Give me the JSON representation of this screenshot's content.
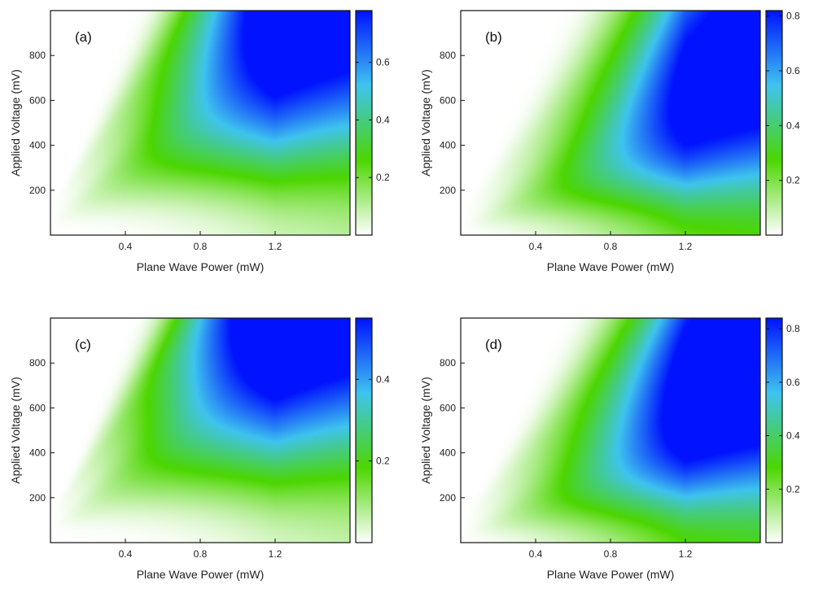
{
  "chart_data": [
    {
      "type": "heatmap",
      "panel_label": "(a)",
      "xlabel": "Plane Wave Power (mW)",
      "ylabel": "Applied Voltage (mV)",
      "xlim": [
        0,
        1.6
      ],
      "ylim": [
        0,
        1000
      ],
      "xticks": [
        0.4,
        0.8,
        1.2
      ],
      "xtick_labels": [
        "0.4",
        "0.8",
        "1.2"
      ],
      "yticks": [
        200,
        400,
        600,
        800
      ],
      "ytick_labels": [
        "200",
        "400",
        "600",
        "800"
      ],
      "colorbar": {
        "min": 0,
        "max": 0.78,
        "ticks": [
          0.2,
          0.4,
          0.6
        ],
        "tick_labels": [
          "0.2",
          "0.4",
          "0.6"
        ]
      },
      "pattern": {
        "gain": 0.78,
        "ridges": [
          0.95,
          1.9
        ],
        "floor": 0.6,
        "amp": [
          1.0,
          0.72
        ],
        "tilt": 0.3
      },
      "colormap": [
        "#ffffff",
        "#4cd600",
        "#3ec3ef",
        "#0012ff"
      ],
      "grid": false
    },
    {
      "type": "heatmap",
      "panel_label": "(b)",
      "xlabel": "Plane Wave Power (mW)",
      "ylabel": "Applied Voltage (mV)",
      "xlim": [
        0,
        1.6
      ],
      "ylim": [
        0,
        1000
      ],
      "xticks": [
        0.4,
        0.8,
        1.2
      ],
      "xtick_labels": [
        "0.4",
        "0.8",
        "1.2"
      ],
      "yticks": [
        200,
        400,
        600,
        800
      ],
      "ytick_labels": [
        "200",
        "400",
        "600",
        "800"
      ],
      "colorbar": {
        "min": 0,
        "max": 0.82,
        "ticks": [
          0.2,
          0.4,
          0.6,
          0.8
        ],
        "tick_labels": [
          "0.2",
          "0.4",
          "0.6",
          "0.8"
        ]
      },
      "pattern": {
        "gain": 0.82,
        "ridges": [
          0.55,
          1.45
        ],
        "floor": 0.55,
        "amp": [
          1.0,
          0.45
        ],
        "tilt": 0.2
      },
      "colormap": [
        "#ffffff",
        "#4cd600",
        "#3ec3ef",
        "#0012ff"
      ],
      "grid": false
    },
    {
      "type": "heatmap",
      "panel_label": "(c)",
      "xlabel": "Plane Wave Power (mW)",
      "ylabel": "Applied Voltage (mV)",
      "xlim": [
        0,
        1.6
      ],
      "ylim": [
        0,
        1000
      ],
      "xticks": [
        0.4,
        0.8,
        1.2
      ],
      "xtick_labels": [
        "0.4",
        "0.8",
        "1.2"
      ],
      "yticks": [
        200,
        400,
        600,
        800
      ],
      "ytick_labels": [
        "200",
        "400",
        "600",
        "800"
      ],
      "colorbar": {
        "min": 0,
        "max": 0.55,
        "ticks": [
          0.2,
          0.4
        ],
        "tick_labels": [
          "0.2",
          "0.4"
        ]
      },
      "pattern": {
        "gain": 0.55,
        "ridges": [
          1.0,
          1.95
        ],
        "floor": 0.75,
        "amp": [
          1.0,
          0.95
        ],
        "tilt": 0.35
      },
      "colormap": [
        "#ffffff",
        "#4cd600",
        "#3ec3ef",
        "#0012ff"
      ],
      "grid": false
    },
    {
      "type": "heatmap",
      "panel_label": "(d)",
      "xlabel": "Plane Wave Power (mW)",
      "ylabel": "Applied Voltage (mV)",
      "xlim": [
        0,
        1.6
      ],
      "ylim": [
        0,
        1000
      ],
      "xticks": [
        0.4,
        0.8,
        1.2
      ],
      "xtick_labels": [
        "0.4",
        "0.8",
        "1.2"
      ],
      "yticks": [
        200,
        400,
        600,
        800
      ],
      "ytick_labels": [
        "200",
        "400",
        "600",
        "800"
      ],
      "colorbar": {
        "min": 0,
        "max": 0.84,
        "ticks": [
          0.2,
          0.4,
          0.6,
          0.8
        ],
        "tick_labels": [
          "0.2",
          "0.4",
          "0.6",
          "0.8"
        ]
      },
      "pattern": {
        "gain": 0.84,
        "ridges": [
          0.5,
          1.4
        ],
        "floor": 0.5,
        "amp": [
          1.0,
          0.6
        ],
        "tilt": 0.2
      },
      "colormap": [
        "#ffffff",
        "#4cd600",
        "#3ec3ef",
        "#0012ff"
      ],
      "grid": false
    }
  ]
}
